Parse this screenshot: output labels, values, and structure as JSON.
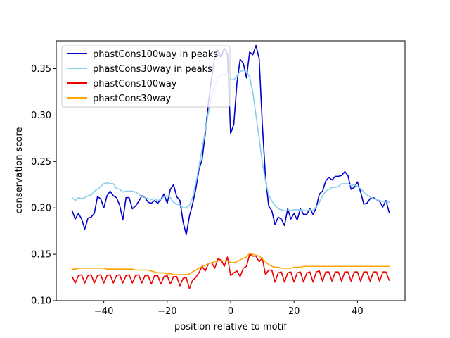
{
  "chart_data": {
    "type": "line",
    "xlabel": "position relative to motif",
    "ylabel": "conservation score",
    "xlim": [
      -55,
      55
    ],
    "ylim": [
      0.1,
      0.38
    ],
    "xticks": [
      -40,
      -20,
      0,
      20,
      40
    ],
    "xtick_labels": [
      "−40",
      "−20",
      "0",
      "20",
      "40"
    ],
    "yticks": [
      0.1,
      0.15,
      0.2,
      0.25,
      0.3,
      0.35
    ],
    "ytick_labels": [
      "0.10",
      "0.15",
      "0.20",
      "0.25",
      "0.30",
      "0.35"
    ],
    "grid": false,
    "legend_position": "top-left",
    "x": [
      -50,
      -49,
      -48,
      -47,
      -46,
      -45,
      -44,
      -43,
      -42,
      -41,
      -40,
      -39,
      -38,
      -37,
      -36,
      -35,
      -34,
      -33,
      -32,
      -31,
      -30,
      -29,
      -28,
      -27,
      -26,
      -25,
      -24,
      -23,
      -22,
      -21,
      -20,
      -19,
      -18,
      -17,
      -16,
      -15,
      -14,
      -13,
      -12,
      -11,
      -10,
      -9,
      -8,
      -7,
      -6,
      -5,
      -4,
      -3,
      -2,
      -1,
      0,
      1,
      2,
      3,
      4,
      5,
      6,
      7,
      8,
      9,
      10,
      11,
      12,
      13,
      14,
      15,
      16,
      17,
      18,
      19,
      20,
      21,
      22,
      23,
      24,
      25,
      26,
      27,
      28,
      29,
      30,
      31,
      32,
      33,
      34,
      35,
      36,
      37,
      38,
      39,
      40,
      41,
      42,
      43,
      44,
      45,
      46,
      47,
      48,
      49,
      50
    ],
    "series": [
      {
        "name": "phastCons100way in peaks",
        "color": "#0000cd",
        "values": [
          0.197,
          0.188,
          0.194,
          0.188,
          0.177,
          0.189,
          0.19,
          0.194,
          0.212,
          0.21,
          0.2,
          0.213,
          0.218,
          0.213,
          0.211,
          0.203,
          0.187,
          0.211,
          0.211,
          0.199,
          0.202,
          0.207,
          0.213,
          0.211,
          0.206,
          0.205,
          0.208,
          0.205,
          0.209,
          0.215,
          0.205,
          0.22,
          0.225,
          0.212,
          0.208,
          0.185,
          0.171,
          0.191,
          0.204,
          0.22,
          0.241,
          0.252,
          0.28,
          0.313,
          0.34,
          0.362,
          0.37,
          0.362,
          0.372,
          0.366,
          0.28,
          0.29,
          0.335,
          0.36,
          0.356,
          0.34,
          0.368,
          0.365,
          0.375,
          0.361,
          0.29,
          0.233,
          0.202,
          0.197,
          0.182,
          0.19,
          0.188,
          0.181,
          0.199,
          0.188,
          0.194,
          0.187,
          0.199,
          0.193,
          0.193,
          0.199,
          0.193,
          0.2,
          0.215,
          0.218,
          0.229,
          0.233,
          0.23,
          0.234,
          0.234,
          0.235,
          0.239,
          0.235,
          0.22,
          0.222,
          0.228,
          0.217,
          0.204,
          0.205,
          0.21,
          0.211,
          0.209,
          0.207,
          0.201,
          0.208,
          0.195
        ]
      },
      {
        "name": "phastCons30way in peaks",
        "color": "#87ceeb",
        "values": [
          0.211,
          0.208,
          0.211,
          0.21,
          0.211,
          0.213,
          0.214,
          0.218,
          0.22,
          0.223,
          0.226,
          0.227,
          0.226,
          0.226,
          0.221,
          0.22,
          0.217,
          0.218,
          0.218,
          0.218,
          0.217,
          0.215,
          0.212,
          0.211,
          0.21,
          0.209,
          0.21,
          0.208,
          0.209,
          0.212,
          0.213,
          0.211,
          0.206,
          0.204,
          0.203,
          0.2,
          0.2,
          0.203,
          0.211,
          0.226,
          0.244,
          0.264,
          0.283,
          0.303,
          0.32,
          0.333,
          0.34,
          0.343,
          0.344,
          0.343,
          0.338,
          0.338,
          0.342,
          0.347,
          0.348,
          0.347,
          0.341,
          0.325,
          0.3,
          0.275,
          0.249,
          0.229,
          0.214,
          0.207,
          0.203,
          0.199,
          0.198,
          0.197,
          0.197,
          0.197,
          0.198,
          0.198,
          0.198,
          0.197,
          0.197,
          0.198,
          0.197,
          0.201,
          0.206,
          0.213,
          0.218,
          0.22,
          0.222,
          0.222,
          0.223,
          0.226,
          0.226,
          0.226,
          0.224,
          0.225,
          0.223,
          0.221,
          0.217,
          0.214,
          0.212,
          0.21,
          0.209,
          0.208,
          0.207,
          0.206,
          0.206
        ]
      },
      {
        "name": "phastCons100way",
        "color": "#ee0000",
        "values": [
          0.126,
          0.119,
          0.127,
          0.128,
          0.119,
          0.127,
          0.128,
          0.119,
          0.127,
          0.128,
          0.119,
          0.127,
          0.128,
          0.119,
          0.127,
          0.128,
          0.119,
          0.127,
          0.128,
          0.119,
          0.127,
          0.128,
          0.119,
          0.127,
          0.127,
          0.118,
          0.127,
          0.127,
          0.118,
          0.126,
          0.127,
          0.118,
          0.126,
          0.126,
          0.116,
          0.124,
          0.125,
          0.113,
          0.122,
          0.125,
          0.13,
          0.137,
          0.132,
          0.14,
          0.141,
          0.135,
          0.145,
          0.144,
          0.137,
          0.147,
          0.127,
          0.13,
          0.132,
          0.126,
          0.135,
          0.137,
          0.15,
          0.148,
          0.148,
          0.142,
          0.146,
          0.128,
          0.133,
          0.133,
          0.12,
          0.13,
          0.131,
          0.12,
          0.13,
          0.131,
          0.12,
          0.13,
          0.131,
          0.12,
          0.13,
          0.131,
          0.12,
          0.131,
          0.132,
          0.121,
          0.131,
          0.131,
          0.121,
          0.131,
          0.131,
          0.121,
          0.131,
          0.131,
          0.121,
          0.131,
          0.131,
          0.121,
          0.131,
          0.131,
          0.121,
          0.131,
          0.131,
          0.121,
          0.131,
          0.131,
          0.122
        ]
      },
      {
        "name": "phastCons30way",
        "color": "#ffa500",
        "values": [
          0.134,
          0.134,
          0.135,
          0.135,
          0.135,
          0.135,
          0.135,
          0.135,
          0.135,
          0.135,
          0.135,
          0.134,
          0.134,
          0.134,
          0.134,
          0.134,
          0.134,
          0.134,
          0.134,
          0.134,
          0.133,
          0.133,
          0.133,
          0.133,
          0.133,
          0.132,
          0.131,
          0.13,
          0.13,
          0.13,
          0.129,
          0.129,
          0.128,
          0.128,
          0.128,
          0.128,
          0.128,
          0.129,
          0.131,
          0.133,
          0.135,
          0.137,
          0.138,
          0.14,
          0.141,
          0.142,
          0.143,
          0.143,
          0.143,
          0.143,
          0.141,
          0.141,
          0.142,
          0.144,
          0.146,
          0.147,
          0.151,
          0.15,
          0.149,
          0.148,
          0.145,
          0.142,
          0.139,
          0.137,
          0.136,
          0.136,
          0.135,
          0.135,
          0.135,
          0.135,
          0.136,
          0.136,
          0.136,
          0.137,
          0.137,
          0.137,
          0.137,
          0.137,
          0.137,
          0.137,
          0.137,
          0.137,
          0.137,
          0.137,
          0.137,
          0.137,
          0.137,
          0.137,
          0.137,
          0.137,
          0.137,
          0.137,
          0.137,
          0.137,
          0.137,
          0.137,
          0.137,
          0.137,
          0.137,
          0.137,
          0.137
        ]
      }
    ]
  }
}
